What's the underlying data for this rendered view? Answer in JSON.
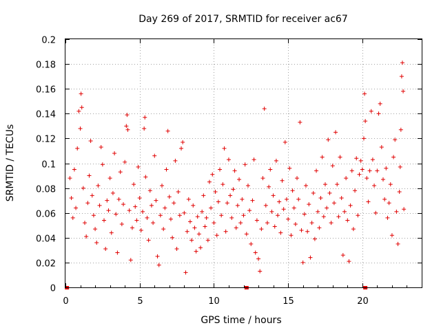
{
  "chart_data": {
    "type": "scatter",
    "title": "Day 269 of 2017, SRMTID for receiver ac67",
    "xlabel": "GPS time / hours",
    "ylabel": "SRMTID / TECUs",
    "xlim": [
      0,
      24
    ],
    "ylim": [
      0,
      0.2
    ],
    "grid": true,
    "marker": "+",
    "series_color": "#e00000",
    "x_ticks": [
      {
        "value": 0,
        "label": "0"
      },
      {
        "value": 5,
        "label": "5"
      },
      {
        "value": 10,
        "label": "10"
      },
      {
        "value": 15,
        "label": "15"
      },
      {
        "value": 20,
        "label": "20"
      }
    ],
    "y_ticks": [
      {
        "value": 0,
        "label": "0"
      },
      {
        "value": 0.02,
        "label": "0.02"
      },
      {
        "value": 0.04,
        "label": "0.04"
      },
      {
        "value": 0.06,
        "label": "0.06"
      },
      {
        "value": 0.08,
        "label": "0.08"
      },
      {
        "value": 0.1,
        "label": "0.1"
      },
      {
        "value": 0.12,
        "label": "0.12"
      },
      {
        "value": 0.14,
        "label": "0.14"
      },
      {
        "value": 0.16,
        "label": "0.16"
      },
      {
        "value": 0.18,
        "label": "0.18"
      },
      {
        "value": 0.2,
        "label": "0.2"
      }
    ],
    "zero_markers_x": [
      0.1,
      12.2,
      20.2
    ],
    "series": [
      {
        "name": "SRMTID",
        "points": [
          [
            0.3,
            0.088
          ],
          [
            0.4,
            0.072
          ],
          [
            0.5,
            0.056
          ],
          [
            0.6,
            0.095
          ],
          [
            0.7,
            0.064
          ],
          [
            0.8,
            0.112
          ],
          [
            0.9,
            0.142
          ],
          [
            1.0,
            0.128
          ],
          [
            1.05,
            0.156
          ],
          [
            1.1,
            0.145
          ],
          [
            1.2,
            0.08
          ],
          [
            1.3,
            0.052
          ],
          [
            1.4,
            0.041
          ],
          [
            1.5,
            0.068
          ],
          [
            1.6,
            0.09
          ],
          [
            1.7,
            0.118
          ],
          [
            1.8,
            0.074
          ],
          [
            1.9,
            0.058
          ],
          [
            2.0,
            0.047
          ],
          [
            2.1,
            0.036
          ],
          [
            2.2,
            0.082
          ],
          [
            2.3,
            0.066
          ],
          [
            2.4,
            0.113
          ],
          [
            2.5,
            0.099
          ],
          [
            2.6,
            0.054
          ],
          [
            2.7,
            0.031
          ],
          [
            2.8,
            0.07
          ],
          [
            2.9,
            0.062
          ],
          [
            3.0,
            0.088
          ],
          [
            3.1,
            0.044
          ],
          [
            3.2,
            0.076
          ],
          [
            3.3,
            0.108
          ],
          [
            3.4,
            0.059
          ],
          [
            3.5,
            0.028
          ],
          [
            3.6,
            0.071
          ],
          [
            3.7,
            0.093
          ],
          [
            3.8,
            0.051
          ],
          [
            3.9,
            0.067
          ],
          [
            4.0,
            0.101
          ],
          [
            4.1,
            0.13
          ],
          [
            4.15,
            0.139
          ],
          [
            4.2,
            0.127
          ],
          [
            4.3,
            0.062
          ],
          [
            4.4,
            0.022
          ],
          [
            4.5,
            0.048
          ],
          [
            4.6,
            0.083
          ],
          [
            4.7,
            0.065
          ],
          [
            4.8,
            0.054
          ],
          [
            4.9,
            0.097
          ],
          [
            5.0,
            0.072
          ],
          [
            5.1,
            0.046
          ],
          [
            5.2,
            0.061
          ],
          [
            5.3,
            0.128
          ],
          [
            5.35,
            0.137
          ],
          [
            5.4,
            0.089
          ],
          [
            5.5,
            0.056
          ],
          [
            5.6,
            0.038
          ],
          [
            5.7,
            0.078
          ],
          [
            5.8,
            0.066
          ],
          [
            5.9,
            0.052
          ],
          [
            6.0,
            0.106
          ],
          [
            6.1,
            0.07
          ],
          [
            6.2,
            0.025
          ],
          [
            6.3,
            0.018
          ],
          [
            6.4,
            0.058
          ],
          [
            6.5,
            0.082
          ],
          [
            6.6,
            0.047
          ],
          [
            6.7,
            0.064
          ],
          [
            6.8,
            0.095
          ],
          [
            6.9,
            0.126
          ],
          [
            7.0,
            0.073
          ],
          [
            7.1,
            0.055
          ],
          [
            7.2,
            0.04
          ],
          [
            7.3,
            0.068
          ],
          [
            7.4,
            0.102
          ],
          [
            7.5,
            0.031
          ],
          [
            7.6,
            0.077
          ],
          [
            7.7,
            0.058
          ],
          [
            7.8,
            0.112
          ],
          [
            7.9,
            0.117
          ],
          [
            8.0,
            0.06
          ],
          [
            8.1,
            0.012
          ],
          [
            8.2,
            0.045
          ],
          [
            8.3,
            0.071
          ],
          [
            8.4,
            0.053
          ],
          [
            8.5,
            0.038
          ],
          [
            8.6,
            0.066
          ],
          [
            8.7,
            0.048
          ],
          [
            8.8,
            0.029
          ],
          [
            8.9,
            0.057
          ],
          [
            9.0,
            0.043
          ],
          [
            9.1,
            0.032
          ],
          [
            9.2,
            0.061
          ],
          [
            9.3,
            0.074
          ],
          [
            9.4,
            0.049
          ],
          [
            9.5,
            0.056
          ],
          [
            9.6,
            0.038
          ],
          [
            9.7,
            0.085
          ],
          [
            9.8,
            0.064
          ],
          [
            9.9,
            0.091
          ],
          [
            10.0,
            0.052
          ],
          [
            10.1,
            0.077
          ],
          [
            10.2,
            0.042
          ],
          [
            10.3,
            0.069
          ],
          [
            10.4,
            0.095
          ],
          [
            10.5,
            0.058
          ],
          [
            10.6,
            0.083
          ],
          [
            10.7,
            0.112
          ],
          [
            10.8,
            0.045
          ],
          [
            10.9,
            0.068
          ],
          [
            11.0,
            0.103
          ],
          [
            11.1,
            0.074
          ],
          [
            11.2,
            0.056
          ],
          [
            11.3,
            0.079
          ],
          [
            11.4,
            0.094
          ],
          [
            11.5,
            0.048
          ],
          [
            11.6,
            0.066
          ],
          [
            11.7,
            0.087
          ],
          [
            11.8,
            0.052
          ],
          [
            11.9,
            0.071
          ],
          [
            12.0,
            0.058
          ],
          [
            12.1,
            0.099
          ],
          [
            12.2,
            0.043
          ],
          [
            12.3,
            0.082
          ],
          [
            12.4,
            0.062
          ],
          [
            12.5,
            0.035
          ],
          [
            12.6,
            0.07
          ],
          [
            12.7,
            0.103
          ],
          [
            12.8,
            0.028
          ],
          [
            12.9,
            0.054
          ],
          [
            13.0,
            0.023
          ],
          [
            13.1,
            0.013
          ],
          [
            13.2,
            0.047
          ],
          [
            13.3,
            0.088
          ],
          [
            13.4,
            0.144
          ],
          [
            13.5,
            0.066
          ],
          [
            13.6,
            0.052
          ],
          [
            13.7,
            0.081
          ],
          [
            13.8,
            0.095
          ],
          [
            13.9,
            0.061
          ],
          [
            14.0,
            0.074
          ],
          [
            14.1,
            0.049
          ],
          [
            14.2,
            0.102
          ],
          [
            14.3,
            0.058
          ],
          [
            14.4,
            0.069
          ],
          [
            14.5,
            0.044
          ],
          [
            14.6,
            0.086
          ],
          [
            14.7,
            0.063
          ],
          [
            14.8,
            0.117
          ],
          [
            14.9,
            0.071
          ],
          [
            15.0,
            0.055
          ],
          [
            15.1,
            0.096
          ],
          [
            15.2,
            0.042
          ],
          [
            15.3,
            0.078
          ],
          [
            15.4,
            0.064
          ],
          [
            15.5,
            0.051
          ],
          [
            15.6,
            0.088
          ],
          [
            15.7,
            0.071
          ],
          [
            15.8,
            0.133
          ],
          [
            15.9,
            0.046
          ],
          [
            16.0,
            0.02
          ],
          [
            16.1,
            0.059
          ],
          [
            16.2,
            0.082
          ],
          [
            16.3,
            0.045
          ],
          [
            16.4,
            0.067
          ],
          [
            16.5,
            0.024
          ],
          [
            16.6,
            0.052
          ],
          [
            16.7,
            0.076
          ],
          [
            16.8,
            0.039
          ],
          [
            16.9,
            0.094
          ],
          [
            17.0,
            0.061
          ],
          [
            17.1,
            0.048
          ],
          [
            17.2,
            0.072
          ],
          [
            17.3,
            0.105
          ],
          [
            17.4,
            0.057
          ],
          [
            17.5,
            0.083
          ],
          [
            17.6,
            0.064
          ],
          [
            17.7,
            0.119
          ],
          [
            17.8,
            0.076
          ],
          [
            17.9,
            0.052
          ],
          [
            18.0,
            0.098
          ],
          [
            18.1,
            0.068
          ],
          [
            18.2,
            0.125
          ],
          [
            18.3,
            0.083
          ],
          [
            18.4,
            0.057
          ],
          [
            18.5,
            0.105
          ],
          [
            18.6,
            0.072
          ],
          [
            18.7,
            0.026
          ],
          [
            18.8,
            0.061
          ],
          [
            18.9,
            0.088
          ],
          [
            19.0,
            0.054
          ],
          [
            19.1,
            0.021
          ],
          [
            19.2,
            0.066
          ],
          [
            19.3,
            0.094
          ],
          [
            19.4,
            0.047
          ],
          [
            19.5,
            0.078
          ],
          [
            19.6,
            0.104
          ],
          [
            19.7,
            0.058
          ],
          [
            19.8,
            0.091
          ],
          [
            19.9,
            0.102
          ],
          [
            20.0,
            0.095
          ],
          [
            20.1,
            0.12
          ],
          [
            20.15,
            0.156
          ],
          [
            20.2,
            0.134
          ],
          [
            20.3,
            0.088
          ],
          [
            20.4,
            0.069
          ],
          [
            20.5,
            0.094
          ],
          [
            20.6,
            0.142
          ],
          [
            20.7,
            0.103
          ],
          [
            20.8,
            0.082
          ],
          [
            20.9,
            0.06
          ],
          [
            21.0,
            0.094
          ],
          [
            21.1,
            0.14
          ],
          [
            21.2,
            0.148
          ],
          [
            21.3,
            0.113
          ],
          [
            21.4,
            0.087
          ],
          [
            21.5,
            0.071
          ],
          [
            21.6,
            0.096
          ],
          [
            21.7,
            0.056
          ],
          [
            21.8,
            0.068
          ],
          [
            21.9,
            0.083
          ],
          [
            22.0,
            0.042
          ],
          [
            22.1,
            0.105
          ],
          [
            22.2,
            0.119
          ],
          [
            22.3,
            0.061
          ],
          [
            22.4,
            0.035
          ],
          [
            22.5,
            0.077
          ],
          [
            22.55,
            0.097
          ],
          [
            22.6,
            0.127
          ],
          [
            22.65,
            0.17
          ],
          [
            22.7,
            0.181
          ],
          [
            22.75,
            0.158
          ],
          [
            22.8,
            0.063
          ]
        ]
      }
    ]
  }
}
